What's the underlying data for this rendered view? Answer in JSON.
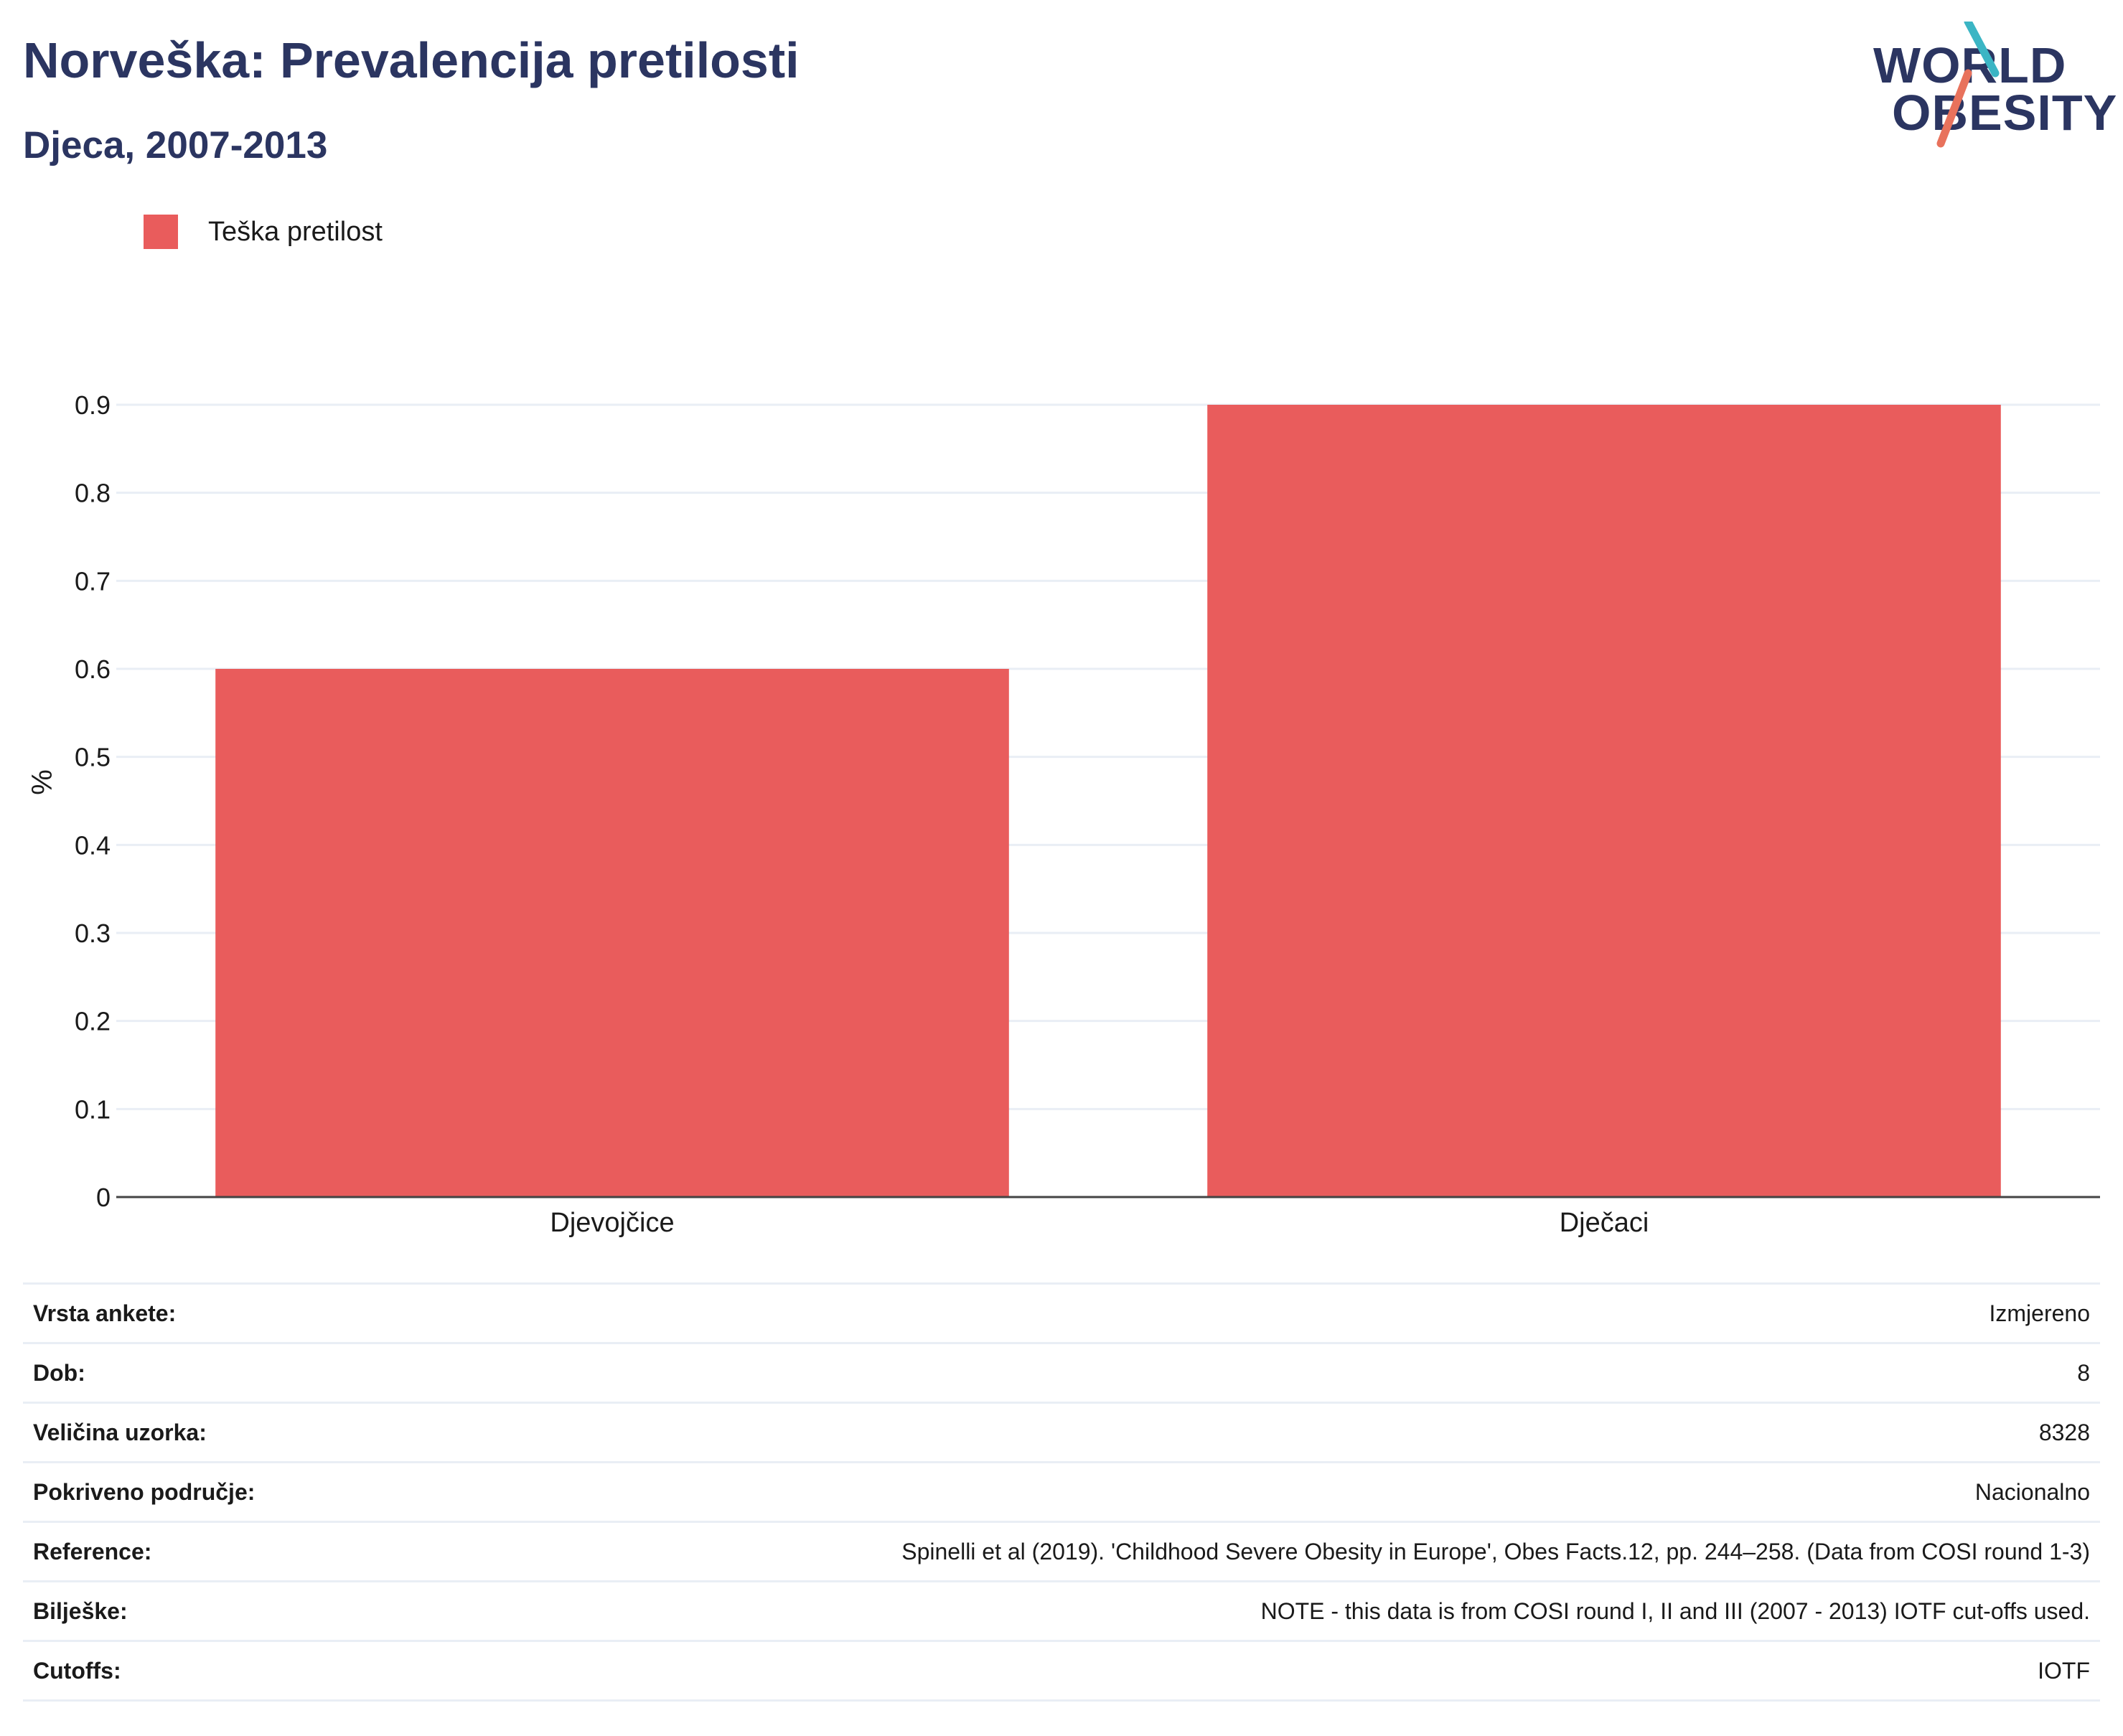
{
  "header": {
    "title": "Norveška: Prevalencija pretilosti",
    "subtitle": "Djeca, 2007-2013"
  },
  "logo": {
    "line1": "WORLD",
    "line2": "OBESITY"
  },
  "colors": {
    "bar": "#e95c5c",
    "title": "#2b3561",
    "logo_teal": "#3bb5c4",
    "logo_coral": "#e8725c",
    "grid": "#e9eef5",
    "axis": "#444444"
  },
  "chart_data": {
    "type": "bar",
    "categories": [
      "Djevojčice",
      "Dječaci"
    ],
    "series": [
      {
        "name": "Teška pretilost",
        "values": [
          0.6,
          0.9
        ]
      }
    ],
    "ylabel": "%",
    "xlabel": "",
    "ylim": [
      0,
      0.9
    ],
    "yticks": [
      "0",
      "0.1",
      "0.2",
      "0.3",
      "0.4",
      "0.5",
      "0.6",
      "0.7",
      "0.8",
      "0.9"
    ],
    "grid": true,
    "legend_position": "top-left"
  },
  "info": [
    {
      "label": "Vrsta ankete:",
      "value": "Izmjereno"
    },
    {
      "label": "Dob:",
      "value": "8"
    },
    {
      "label": "Veličina uzorka:",
      "value": "8328"
    },
    {
      "label": "Pokriveno područje:",
      "value": "Nacionalno"
    },
    {
      "label": "Reference:",
      "value": "Spinelli et al (2019). 'Childhood Severe Obesity in Europe', Obes Facts.12, pp. 244–258. (Data from COSI round 1-3)"
    },
    {
      "label": "Bilješke:",
      "value": "NOTE - this data is from COSI round I, II and III (2007 - 2013) IOTF cut-offs used."
    },
    {
      "label": "Cutoffs:",
      "value": "IOTF"
    }
  ]
}
